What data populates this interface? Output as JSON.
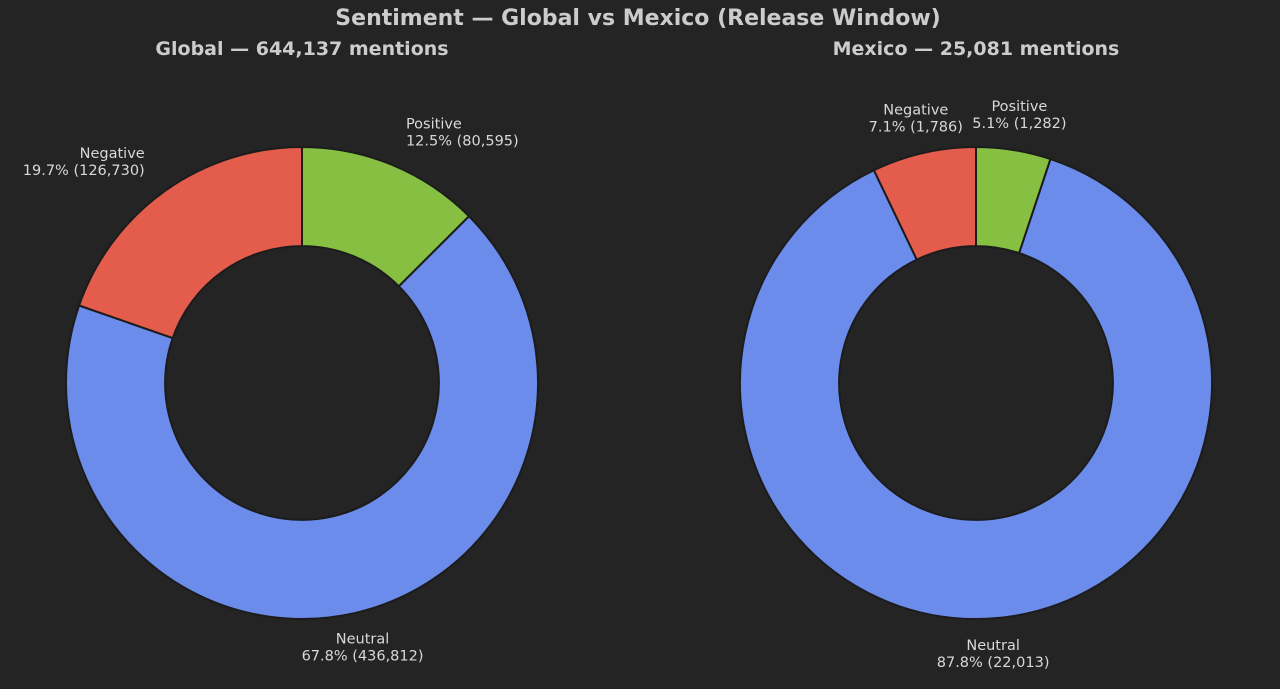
{
  "chart_data": {
    "type": "pie",
    "title": "Sentiment — Global vs Mexico (Release Window)",
    "charts": [
      {
        "id": "global",
        "title": "Global — 644,137 mentions",
        "slices": [
          {
            "name": "Positive",
            "value": 80595,
            "label": "12.5% (80,595)",
            "color": "#86bf41"
          },
          {
            "name": "Neutral",
            "value": 436812,
            "label": "67.8% (436,812)",
            "color": "#6b8cea"
          },
          {
            "name": "Negative",
            "value": 126730,
            "label": "19.7% (126,730)",
            "color": "#e45c4b"
          }
        ]
      },
      {
        "id": "mexico",
        "title": "Mexico — 25,081 mentions",
        "slices": [
          {
            "name": "Positive",
            "value": 1282,
            "label": "5.1% (1,282)",
            "color": "#86bf41"
          },
          {
            "name": "Neutral",
            "value": 22013,
            "label": "87.8% (22,013)",
            "color": "#6b8cea"
          },
          {
            "name": "Negative",
            "value": 1786,
            "label": "7.1% (1,786)",
            "color": "#e45c4b"
          }
        ]
      }
    ],
    "donut_hole_ratio": 0.58,
    "start": "top",
    "direction": "clockwise",
    "background": "#242424"
  }
}
